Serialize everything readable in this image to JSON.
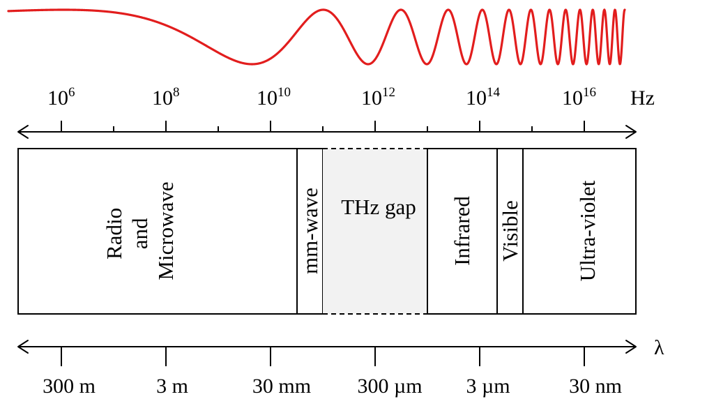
{
  "colors": {
    "wave": "#e21d1d",
    "gap_fill": "#f2f2f2",
    "line": "#000000"
  },
  "frequency_axis": {
    "unit": "Hz",
    "ticks": [
      {
        "base": "10",
        "exp": "6"
      },
      {
        "base": "10",
        "exp": "8"
      },
      {
        "base": "10",
        "exp": "10"
      },
      {
        "base": "10",
        "exp": "12"
      },
      {
        "base": "10",
        "exp": "14"
      },
      {
        "base": "10",
        "exp": "16"
      }
    ]
  },
  "wavelength_axis": {
    "unit": "λ",
    "ticks": [
      "300 m",
      "3 m",
      "30 mm",
      "300 µm",
      "3 µm",
      "30 nm"
    ]
  },
  "bands": {
    "radio": {
      "lines": [
        "Radio",
        "and",
        "Microwave"
      ]
    },
    "mmwave": {
      "label": "mm-wave"
    },
    "thz": {
      "label": "THz gap"
    },
    "infrared": {
      "label": "Infrared"
    },
    "visible": {
      "label": "Visible"
    },
    "uv": {
      "label": "Ultra-violet"
    }
  }
}
